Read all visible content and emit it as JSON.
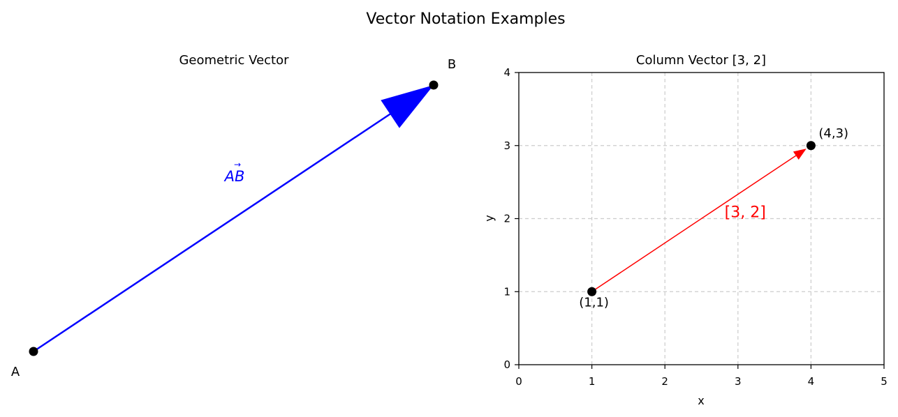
{
  "figure": {
    "title": "Vector Notation Examples"
  },
  "chart_data": [
    {
      "type": "vector",
      "title": "Geometric Vector",
      "axes_visible": false,
      "points": [
        {
          "label": "A",
          "x": 0,
          "y": 0
        },
        {
          "label": "B",
          "x": 3,
          "y": 2
        }
      ],
      "vector": {
        "from": "A",
        "to": "B",
        "label_base": "AB",
        "label_accent": "→"
      },
      "colors": {
        "vector": "#0000ff",
        "points": "#000000"
      }
    },
    {
      "type": "vector",
      "title": "Column Vector [3, 2]",
      "xlabel": "x",
      "ylabel": "y",
      "xlim": [
        0,
        5
      ],
      "ylim": [
        0,
        4
      ],
      "xticks": [
        "0",
        "1",
        "2",
        "3",
        "4",
        "5"
      ],
      "yticks": [
        "0",
        "1",
        "2",
        "3",
        "4"
      ],
      "grid": true,
      "points": [
        {
          "label": "(1,1)",
          "x": 1,
          "y": 1
        },
        {
          "label": "(4,3)",
          "x": 4,
          "y": 3
        }
      ],
      "vector": {
        "from": [
          1,
          1
        ],
        "to": [
          4,
          3
        ],
        "label": "[3, 2]"
      },
      "colors": {
        "vector": "#ff0000",
        "points": "#000000",
        "grid": "#cccccc"
      }
    }
  ]
}
